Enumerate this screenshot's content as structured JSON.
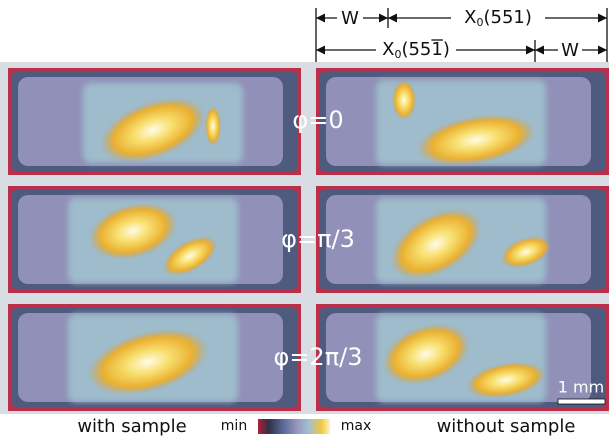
{
  "header": {
    "top": {
      "w": "W",
      "x0": {
        "symbol": "X",
        "sub": "0",
        "rest": "(551)"
      }
    },
    "bottom": {
      "x0": {
        "symbol": "X",
        "sub": "0",
        "open": "(55",
        "bar": "1",
        "close": ")"
      },
      "w": "W"
    }
  },
  "panels": {
    "phi_labels": [
      "φ=0",
      "φ=π/3",
      "φ=2π/3"
    ]
  },
  "scale_bar": "1 mm",
  "footer": {
    "left": "with sample",
    "min": "min",
    "max": "max",
    "right": "without sample"
  }
}
